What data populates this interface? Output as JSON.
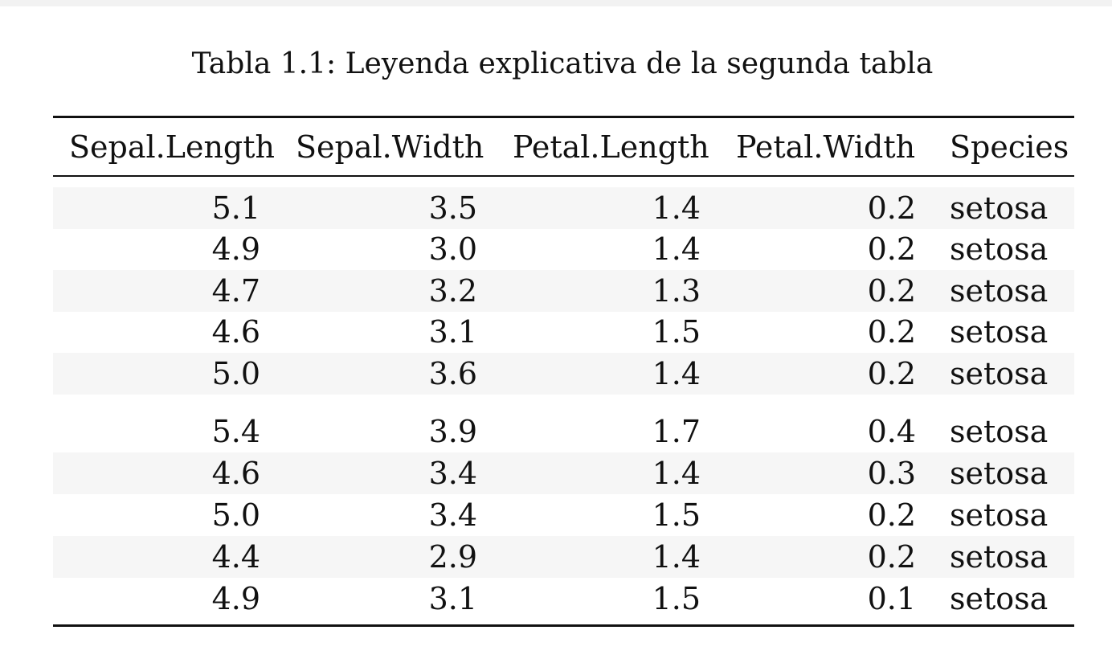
{
  "caption": "Tabla 1.1: Leyenda explicativa de la segunda tabla",
  "columns": [
    "Sepal.Length",
    "Sepal.Width",
    "Petal.Length",
    "Petal.Width",
    "Species"
  ],
  "rows": [
    [
      "5.1",
      "3.5",
      "1.4",
      "0.2",
      "setosa"
    ],
    [
      "4.9",
      "3.0",
      "1.4",
      "0.2",
      "setosa"
    ],
    [
      "4.7",
      "3.2",
      "1.3",
      "0.2",
      "setosa"
    ],
    [
      "4.6",
      "3.1",
      "1.5",
      "0.2",
      "setosa"
    ],
    [
      "5.0",
      "3.6",
      "1.4",
      "0.2",
      "setosa"
    ],
    [
      "5.4",
      "3.9",
      "1.7",
      "0.4",
      "setosa"
    ],
    [
      "4.6",
      "3.4",
      "1.4",
      "0.3",
      "setosa"
    ],
    [
      "5.0",
      "3.4",
      "1.5",
      "0.2",
      "setosa"
    ],
    [
      "4.4",
      "2.9",
      "1.4",
      "0.2",
      "setosa"
    ],
    [
      "4.9",
      "3.1",
      "1.5",
      "0.1",
      "setosa"
    ]
  ]
}
